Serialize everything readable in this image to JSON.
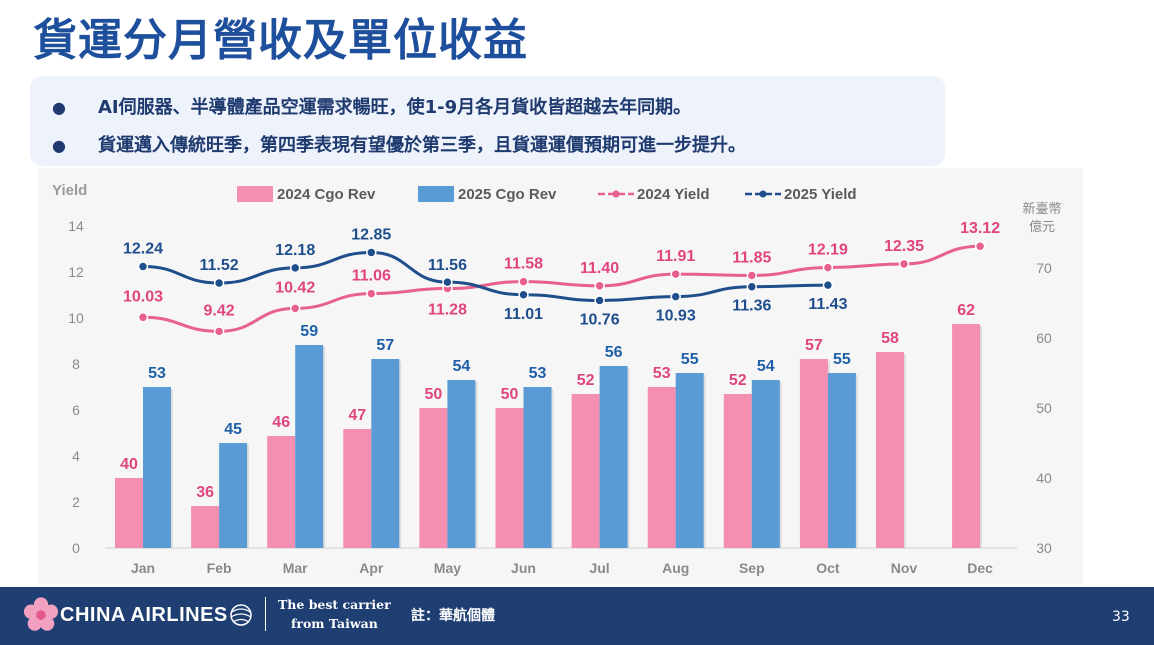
{
  "slide": {
    "title": "貨運分月營收及單位收益",
    "bullets": [
      "AI伺服器、半導體產品空運需求暢旺，使1-9月各月貨收皆超越去年同期。",
      "貨運邁入傳統旺季，第四季表現有望優於第三季，且貨運運價預期可進一步提升。"
    ],
    "bullet_symbol": "●",
    "footer": {
      "brand": "CHINA AIRLINES",
      "tagline_line1": "The best carrier",
      "tagline_line2": "from Taiwan",
      "note": "註：華航個體",
      "page_number": "33"
    }
  },
  "colors": {
    "title": "#1e4f9c",
    "pink_bar": "#f48fb1",
    "blue_bar": "#5b9bd5",
    "pink_line": "#e8608f",
    "navy_line": "#1f4e8c",
    "pink_label": "#e0457f",
    "blue_label": "#1f5fa8",
    "footer_bg": "#1f3f73",
    "panel_bg": "#eef2fb",
    "chart_bg": "#f6f6f6"
  },
  "chart_data": {
    "type": "bar",
    "categories": [
      "Jan",
      "Feb",
      "Mar",
      "Apr",
      "May",
      "Jun",
      "Jul",
      "Aug",
      "Sep",
      "Oct",
      "Nov",
      "Dec"
    ],
    "left_axis": {
      "label": "Yield",
      "range": [
        0,
        14
      ],
      "ticks": [
        "0",
        "2",
        "4",
        "6",
        "8",
        "10",
        "12",
        "14"
      ]
    },
    "right_axis": {
      "label_line1": "新臺幣",
      "label_line2": "億元",
      "range": [
        30,
        76
      ],
      "ticks": [
        "30",
        "40",
        "50",
        "60",
        "70"
      ]
    },
    "bar_series": [
      {
        "name": "2024  Cgo Rev",
        "axis": "right",
        "values": [
          40,
          36,
          46,
          47,
          50,
          50,
          52,
          53,
          52,
          57,
          58,
          62
        ],
        "labels": [
          "40",
          "36",
          "46",
          "47",
          "50",
          "50",
          "52",
          "53",
          "52",
          "57",
          "58",
          "62"
        ]
      },
      {
        "name": "2025  Cgo Rev",
        "axis": "right",
        "values": [
          53,
          45,
          59,
          57,
          54,
          53,
          56,
          55,
          54,
          55,
          null,
          null
        ],
        "labels": [
          "53",
          "45",
          "59",
          "57",
          "54",
          "53",
          "56",
          "55",
          "54",
          "55",
          "",
          ""
        ]
      }
    ],
    "line_series": [
      {
        "name": "2024 Yield",
        "axis": "left",
        "values": [
          10.03,
          9.42,
          10.42,
          11.06,
          11.28,
          11.58,
          11.4,
          11.91,
          11.85,
          12.19,
          12.35,
          13.12
        ],
        "labels": [
          "10.03",
          "9.42",
          "10.42",
          "11.06",
          "11.28",
          "11.58",
          "11.40",
          "11.91",
          "11.85",
          "12.19",
          "12.35",
          "13.12"
        ]
      },
      {
        "name": "2025 Yield",
        "axis": "left",
        "values": [
          12.24,
          11.52,
          12.18,
          12.85,
          11.56,
          11.01,
          10.76,
          10.93,
          11.36,
          11.43,
          null,
          null
        ],
        "labels": [
          "12.24",
          "11.52",
          "12.18",
          "12.85",
          "11.56",
          "11.01",
          "10.76",
          "10.93",
          "11.36",
          "11.43",
          "",
          ""
        ]
      }
    ],
    "legend_position": "top",
    "grid": false
  }
}
